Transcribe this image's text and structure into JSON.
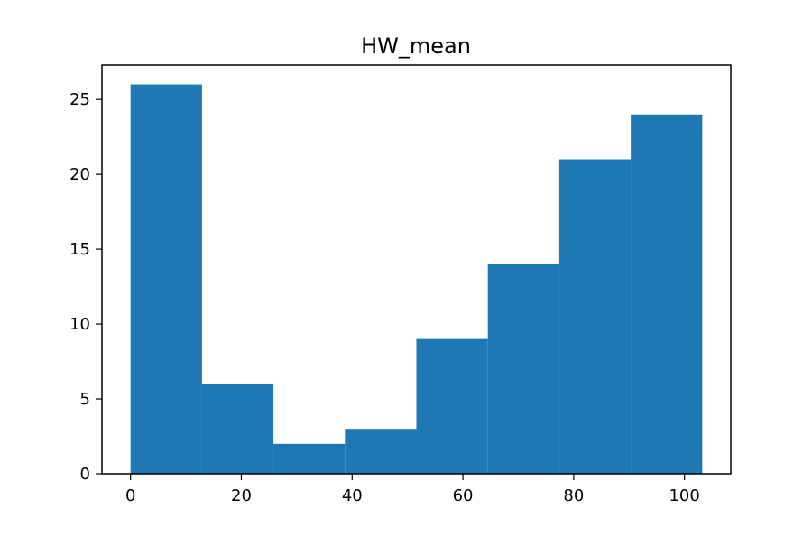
{
  "chart_data": {
    "type": "bar",
    "title": "HW_mean",
    "xlabel": "",
    "ylabel": "",
    "bins": [
      {
        "start": 0.0,
        "end": 12.9,
        "count": 26
      },
      {
        "start": 12.9,
        "end": 25.8,
        "count": 6
      },
      {
        "start": 25.8,
        "end": 38.7,
        "count": 2
      },
      {
        "start": 38.7,
        "end": 51.6,
        "count": 3
      },
      {
        "start": 51.6,
        "end": 64.5,
        "count": 9
      },
      {
        "start": 64.5,
        "end": 77.4,
        "count": 14
      },
      {
        "start": 77.4,
        "end": 90.3,
        "count": 21
      },
      {
        "start": 90.3,
        "end": 103.2,
        "count": 24
      }
    ],
    "xlim": [
      -5.16,
      108.36
    ],
    "ylim": [
      0,
      27.3
    ],
    "xticks": [
      0,
      20,
      40,
      60,
      80,
      100
    ],
    "yticks": [
      0,
      5,
      10,
      15,
      20,
      25
    ],
    "bar_color": "#1f77b4",
    "grid": false,
    "legend": "none"
  }
}
